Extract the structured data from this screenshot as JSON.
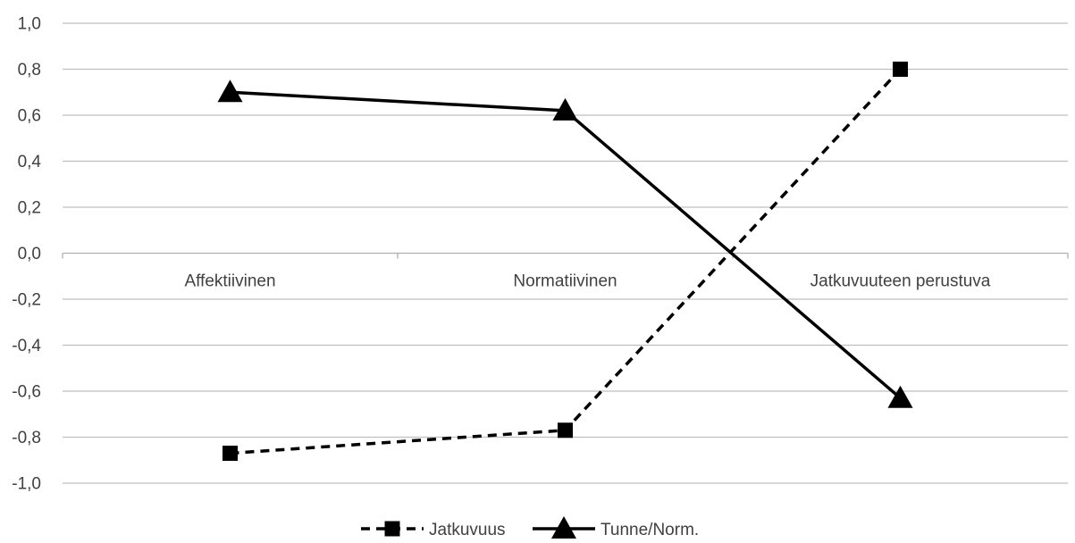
{
  "chart_data": {
    "type": "line",
    "categories": [
      "Affektiivinen",
      "Normatiivinen",
      "Jatkuvuuteen perustuva"
    ],
    "series": [
      {
        "name": "Jatkuvuus",
        "values": [
          -0.87,
          -0.77,
          0.8
        ],
        "color": "#000000",
        "line_style": "dashed",
        "marker": "square"
      },
      {
        "name": "Tunne/Norm.",
        "values": [
          0.7,
          0.62,
          -0.63
        ],
        "color": "#000000",
        "line_style": "solid",
        "marker": "triangle"
      }
    ],
    "yticks": [
      "1,0",
      "0,8",
      "0,6",
      "0,4",
      "0,2",
      "0,0",
      "-0,2",
      "-0,4",
      "-0,6",
      "-0,8",
      "-1,0"
    ],
    "ylim": [
      -1.0,
      1.0
    ],
    "grid": true,
    "gridline_color": "#bfbfbf",
    "legend_position": "bottom"
  }
}
